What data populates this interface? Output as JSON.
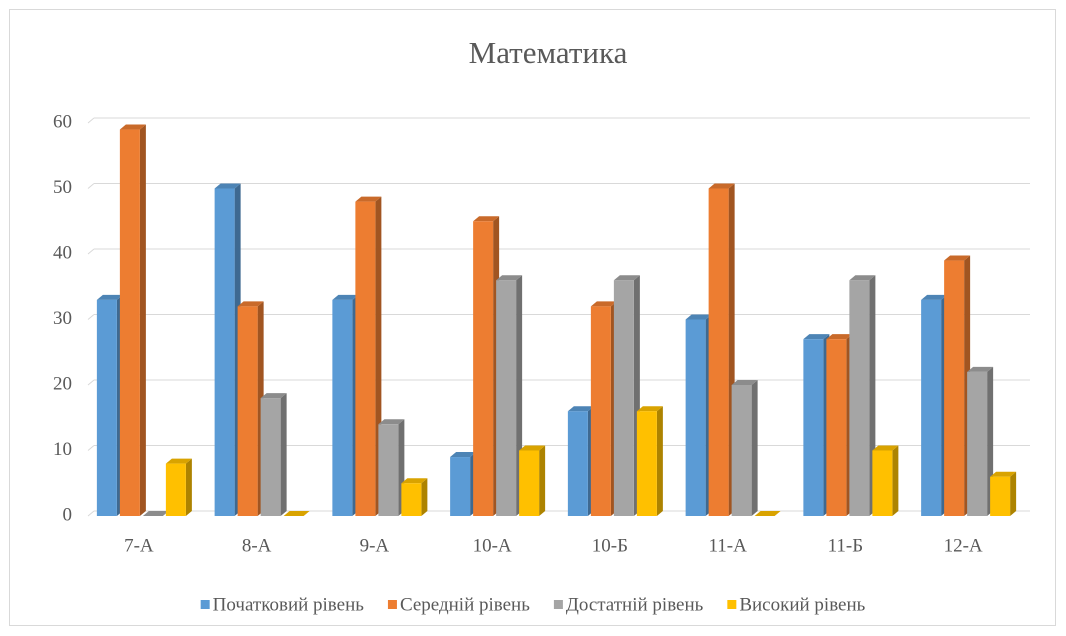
{
  "chart_data": {
    "type": "bar",
    "title": "Математика",
    "categories": [
      "7-А",
      "8-А",
      "9-А",
      "10-А",
      "10-Б",
      "11-А",
      "11-Б",
      "12-А"
    ],
    "series": [
      {
        "name": "Початковий рівень",
        "color": "#5b9bd5",
        "values": [
          33,
          50,
          33,
          9,
          16,
          30,
          27,
          33
        ]
      },
      {
        "name": "Середній рівень",
        "color": "#ed7d31",
        "values": [
          59,
          32,
          48,
          45,
          32,
          50,
          27,
          39
        ]
      },
      {
        "name": "Достатній рівень",
        "color": "#a5a5a5",
        "values": [
          0,
          18,
          14,
          36,
          36,
          20,
          36,
          22
        ]
      },
      {
        "name": "Високий рівень",
        "color": "#ffc000",
        "values": [
          8,
          0,
          5,
          10,
          16,
          0,
          10,
          6
        ]
      }
    ],
    "ylim": [
      0,
      60
    ],
    "yticks": [
      0,
      10,
      20,
      30,
      40,
      50,
      60
    ],
    "grid": true,
    "legend": "bottom"
  }
}
